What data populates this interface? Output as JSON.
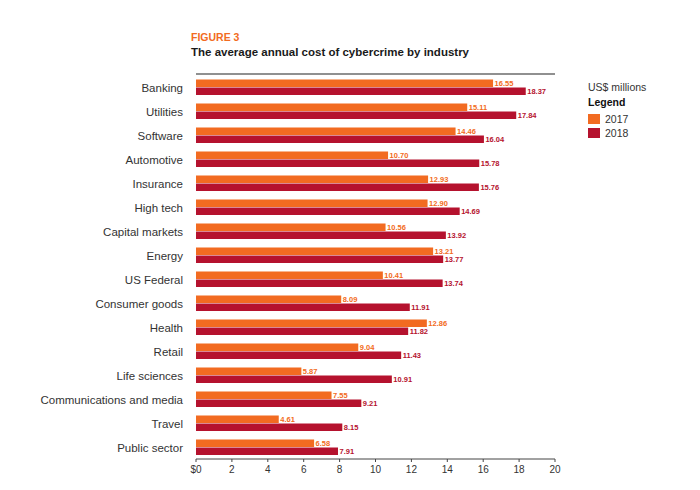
{
  "chart_data": {
    "type": "bar",
    "orientation": "horizontal",
    "title": "FIGURE 3",
    "subtitle": "The average annual cost of cybercrime by industry",
    "annotations": [
      "US$ millions"
    ],
    "legend_title": "Legend",
    "legend": "right",
    "grid": false,
    "data_labels": true,
    "categories": [
      "Banking",
      "Utilities",
      "Software",
      "Automotive",
      "Insurance",
      "High tech",
      "Capital markets",
      "Energy",
      "US Federal",
      "Consumer goods",
      "Health",
      "Retail",
      "Life sciences",
      "Communications and media",
      "Travel",
      "Public sector"
    ],
    "series": [
      {
        "name": "2017",
        "color": "#f26b21",
        "values": [
          16.55,
          15.11,
          14.46,
          10.7,
          12.93,
          12.9,
          10.56,
          13.21,
          10.41,
          8.09,
          12.86,
          9.04,
          5.87,
          7.55,
          4.61,
          6.58
        ],
        "value_labels": [
          "16.55",
          "15.11",
          "14.46",
          "10.70",
          "12.93",
          "12.90",
          "10.56",
          "13.21",
          "10.41",
          "8.09",
          "12.86",
          "9.04",
          "5.87",
          "7.55",
          "4.61",
          "6.58"
        ]
      },
      {
        "name": "2018",
        "color": "#b5122e",
        "values": [
          18.37,
          17.84,
          16.04,
          15.78,
          15.76,
          14.69,
          13.92,
          13.77,
          13.74,
          11.91,
          11.82,
          11.43,
          10.91,
          9.21,
          8.15,
          7.91
        ],
        "value_labels": [
          "18.37",
          "17.84",
          "16.04",
          "15.78",
          "15.76",
          "14.69",
          "13.92",
          "13.77",
          "13.74",
          "11.91",
          "11.82",
          "11.43",
          "10.91",
          "9.21",
          "8.15",
          "7.91"
        ]
      }
    ],
    "xlim": [
      0,
      20
    ],
    "xticks": [
      {
        "value": 0,
        "label": "$0"
      },
      2,
      4,
      6,
      8,
      10,
      12,
      14,
      16,
      18,
      20
    ]
  }
}
